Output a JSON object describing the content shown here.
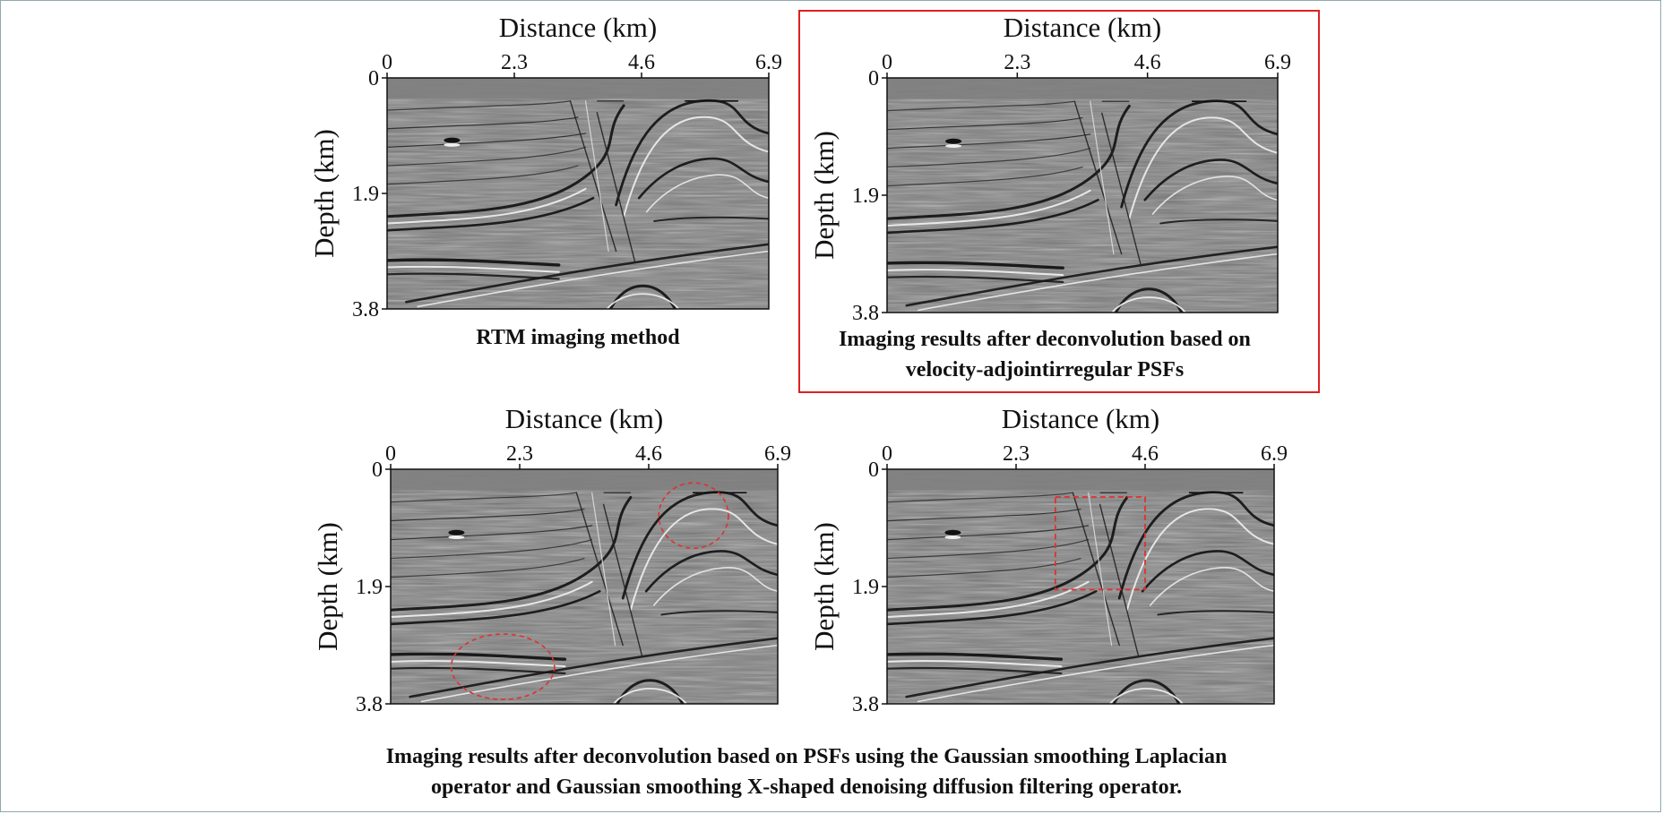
{
  "figure": {
    "panels": [
      {
        "id": "rtm",
        "caption_lines": [
          "RTM imaging method"
        ],
        "highlighted": false,
        "annotations": []
      },
      {
        "id": "velocity-adjoint",
        "caption_lines": [
          "Imaging results after deconvolution based on",
          "velocity-adjointirregular PSFs"
        ],
        "highlighted": true,
        "annotations": []
      },
      {
        "id": "laplacian",
        "caption_lines": [],
        "highlighted": false,
        "annotations": [
          {
            "shape": "ellipse",
            "style": "dashed",
            "color": "#e03030",
            "cx_km": 5.4,
            "cy_km": 0.75,
            "rx_km": 0.62,
            "ry_km": 0.53
          },
          {
            "shape": "ellipse",
            "style": "dashed",
            "color": "#e03030",
            "cx_km": 2.0,
            "cy_km": 3.2,
            "rx_km": 0.92,
            "ry_km": 0.53
          }
        ]
      },
      {
        "id": "x-shaped",
        "caption_lines": [],
        "highlighted": false,
        "annotations": [
          {
            "shape": "rect",
            "style": "dashed",
            "color": "#e03030",
            "x0_km": 3.0,
            "x1_km": 4.6,
            "y0_km": 0.45,
            "y1_km": 1.95
          }
        ]
      }
    ],
    "shared_caption_lines": [
      "Imaging results after deconvolution based on PSFs using the Gaussian smoothing Laplacian",
      "operator and Gaussian smoothing X-shaped denoising diffusion filtering operator."
    ]
  },
  "chart_data": [
    {
      "type": "heatmap",
      "panel": "rtm",
      "xlabel": "Distance (km)",
      "ylabel": "Depth (km)",
      "xticks": [
        "0",
        "2.3",
        "4.6",
        "6.9"
      ],
      "yticks": [
        "0",
        "1.9",
        "3.8"
      ],
      "xlim": [
        0,
        6.9
      ],
      "ylim": [
        0,
        3.8
      ],
      "colormap": "gray",
      "x_axis_position": "top"
    },
    {
      "type": "heatmap",
      "panel": "velocity-adjoint",
      "xlabel": "Distance (km)",
      "ylabel": "Depth (km)",
      "xticks": [
        "0",
        "2.3",
        "4.6",
        "6.9"
      ],
      "yticks": [
        "0",
        "1.9",
        "3.8"
      ],
      "xlim": [
        0,
        6.9
      ],
      "ylim": [
        0,
        3.8
      ],
      "colormap": "gray",
      "x_axis_position": "top"
    },
    {
      "type": "heatmap",
      "panel": "laplacian",
      "xlabel": "Distance (km)",
      "ylabel": "Depth (km)",
      "xticks": [
        "0",
        "2.3",
        "4.6",
        "6.9"
      ],
      "yticks": [
        "0",
        "1.9",
        "3.8"
      ],
      "xlim": [
        0,
        6.9
      ],
      "ylim": [
        0,
        3.8
      ],
      "colormap": "gray",
      "x_axis_position": "top"
    },
    {
      "type": "heatmap",
      "panel": "x-shaped",
      "xlabel": "Distance (km)",
      "ylabel": "Depth (km)",
      "xticks": [
        "0",
        "2.3",
        "4.6",
        "6.9"
      ],
      "yticks": [
        "0",
        "1.9",
        "3.8"
      ],
      "xlim": [
        0,
        6.9
      ],
      "ylim": [
        0,
        3.8
      ],
      "colormap": "gray",
      "x_axis_position": "top"
    }
  ]
}
